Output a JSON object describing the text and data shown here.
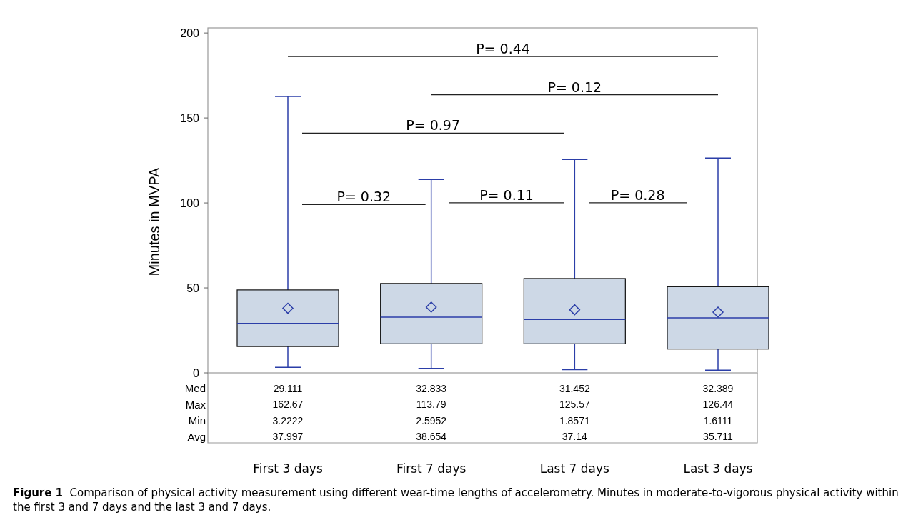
{
  "chart_data": {
    "type": "box",
    "ylabel": "Minutes in MVPA",
    "categories": [
      "First 3 days",
      "First 7 days",
      "Last 7 days",
      "Last 3 days"
    ],
    "boxes": [
      {
        "low": 3.2222,
        "q1": 15.5,
        "median": 29.111,
        "q3": 48.8,
        "high": 162.67,
        "mean": 37.997
      },
      {
        "low": 2.5952,
        "q1": 17.1,
        "median": 32.833,
        "q3": 52.6,
        "high": 113.79,
        "mean": 38.654
      },
      {
        "low": 1.8571,
        "q1": 17.1,
        "median": 31.452,
        "q3": 55.5,
        "high": 125.57,
        "mean": 37.14
      },
      {
        "low": 1.6111,
        "q1": 14.0,
        "median": 32.389,
        "q3": 50.7,
        "high": 126.44,
        "mean": 35.711
      }
    ],
    "color": "#cdd8e6",
    "marker": "diamond",
    "ylim": [
      0,
      203
    ],
    "yticks": [
      0,
      50,
      100,
      150,
      200
    ],
    "grid": false,
    "annotations": [
      "P= 0.44",
      "P= 0.12",
      "P= 0.97",
      "P= 0.32",
      "P= 0.11",
      "P= 0.28",
      "Med",
      "29.111",
      "32.833",
      "31.452",
      "32.389",
      "Max",
      "162.67",
      "113.79",
      "125.57",
      "126.44",
      "Min",
      "3.2222",
      "2.5952",
      "1.8571",
      "1.6111",
      "Avg",
      "37.997",
      "38.654",
      "37.14",
      "35.711",
      "Figure 1  Comparison of physical activity measurement using different wear-time lengths of accelerometry. Minutes in moderate-to-vigorous physical activity within the first 3 and 7 days and the last 3 and 7 days."
    ]
  }
}
